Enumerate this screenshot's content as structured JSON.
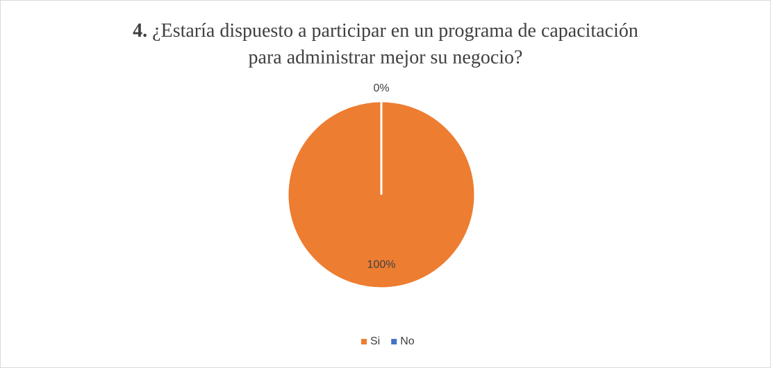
{
  "chart_data": {
    "type": "pie",
    "title": {
      "number": "4.",
      "lines": [
        "¿Estaría dispuesto a participar en un programa de capacitación",
        "para administrar mejor su negocio?"
      ]
    },
    "categories": [
      "Si",
      "No"
    ],
    "values": [
      100,
      0
    ],
    "value_labels": [
      "100%",
      "0%"
    ],
    "colors": [
      "#ed7d31",
      "#4472c4"
    ],
    "legend": "bottom"
  }
}
